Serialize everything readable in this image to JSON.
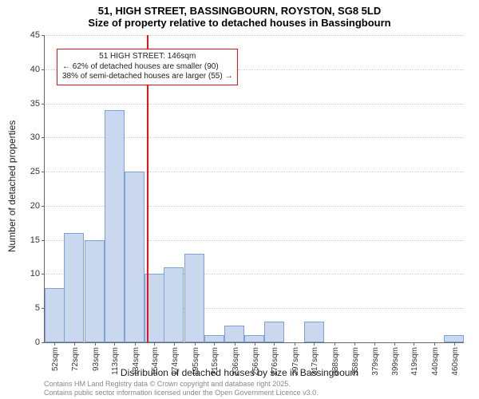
{
  "chart": {
    "type": "histogram",
    "title_main": "51, HIGH STREET, BASSINGBOURN, ROYSTON, SG8 5LD",
    "title_sub": "Size of property relative to detached houses in Bassingbourn",
    "y_axis_title": "Number of detached properties",
    "x_axis_title": "Distribution of detached houses by size in Bassingbourn",
    "ylim": [
      0,
      45
    ],
    "ytick_step": 5,
    "bar_fill": "#c9d8ef",
    "bar_stroke": "#7da1d8",
    "grid_color": "#cccccc",
    "background_color": "#ffffff",
    "refline_color": "#ee1111",
    "refline_at": 146,
    "title_fontsize": 13,
    "label_fontsize": 12,
    "tick_fontsize": 11,
    "x_range": [
      42,
      470
    ],
    "categories": [
      "52sqm",
      "72sqm",
      "93sqm",
      "113sqm",
      "134sqm",
      "154sqm",
      "174sqm",
      "195sqm",
      "215sqm",
      "236sqm",
      "256sqm",
      "276sqm",
      "297sqm",
      "317sqm",
      "338sqm",
      "358sqm",
      "379sqm",
      "399sqm",
      "419sqm",
      "440sqm",
      "460sqm"
    ],
    "category_x": [
      52,
      72,
      93,
      113,
      134,
      154,
      174,
      195,
      215,
      236,
      256,
      276,
      297,
      317,
      338,
      358,
      379,
      399,
      419,
      440,
      460
    ],
    "values": [
      8,
      16,
      15,
      34,
      25,
      10,
      11,
      13,
      1,
      2.5,
      1,
      3,
      0,
      3,
      0,
      0,
      0,
      0,
      0,
      0,
      1
    ],
    "annotation": {
      "line1": "51 HIGH STREET: 146sqm",
      "line2": "← 62% of detached houses are smaller (90)",
      "line3": "38% of semi-detached houses are larger (55) →"
    },
    "footer": {
      "line1": "Contains HM Land Registry data © Crown copyright and database right 2025.",
      "line2": "Contains public sector information licensed under the Open Government Licence v3.0."
    }
  }
}
